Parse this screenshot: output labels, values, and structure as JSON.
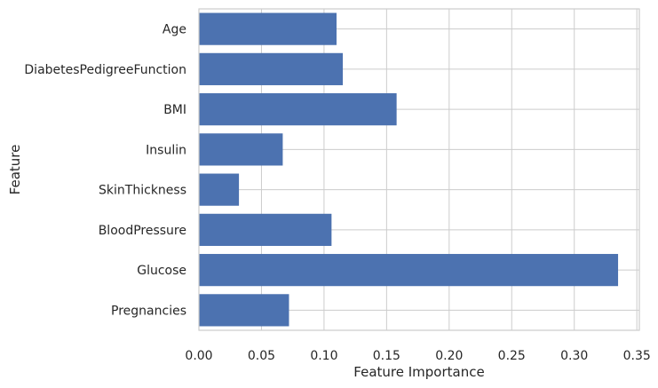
{
  "chart_data": {
    "type": "bar",
    "orientation": "horizontal",
    "categories": [
      "Pregnancies",
      "Glucose",
      "BloodPressure",
      "SkinThickness",
      "Insulin",
      "BMI",
      "DiabetesPedigreeFunction",
      "Age"
    ],
    "values": [
      0.072,
      0.335,
      0.106,
      0.032,
      0.067,
      0.158,
      0.115,
      0.11
    ],
    "title": "",
    "xlabel": "Feature Importance",
    "ylabel": "Feature",
    "xlim": [
      0,
      0.352
    ],
    "xticks": [
      "0.00",
      "0.05",
      "0.10",
      "0.15",
      "0.20",
      "0.25",
      "0.30",
      "0.35"
    ],
    "grid": true,
    "bar_color": "#4c72b0",
    "grid_color": "#cccccc"
  }
}
